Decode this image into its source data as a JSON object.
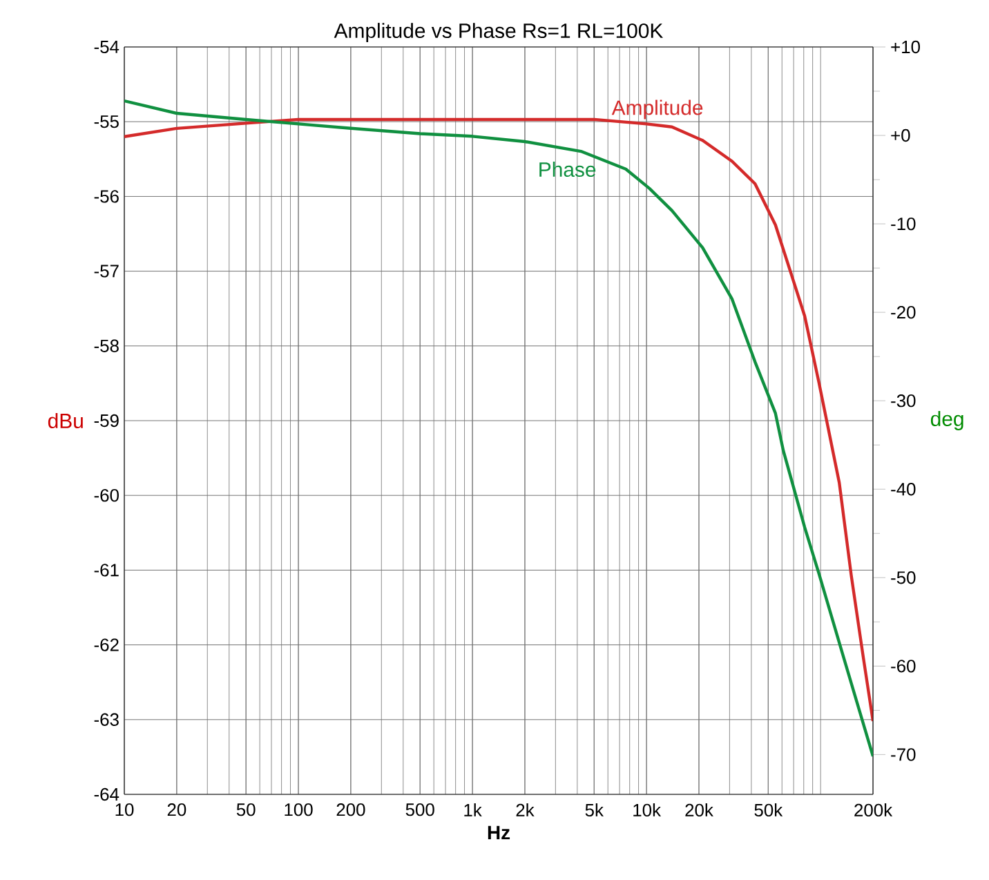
{
  "chart_data": {
    "type": "line",
    "title": "Amplitude vs Phase  Rs=1  RL=100K",
    "xlabel": "Hz",
    "ylabel": "dBu",
    "y2label": "deg",
    "log": "x",
    "grid": true,
    "marker": "none",
    "line_style": "solid",
    "xlim": [
      10,
      200000
    ],
    "xticks": [
      10,
      20,
      50,
      100,
      200,
      500,
      {
        "value": 1000,
        "label": "1k"
      },
      {
        "value": 2000,
        "label": "2k"
      },
      {
        "value": 5000,
        "label": "5k"
      },
      {
        "value": 10000,
        "label": "10k"
      },
      {
        "value": 20000,
        "label": "20k"
      },
      {
        "value": 50000,
        "label": "50k"
      },
      {
        "value": 200000,
        "label": "200k"
      }
    ],
    "ylim": [
      -64,
      -54
    ],
    "yticks": [
      -64,
      -63,
      -62,
      -61,
      -60,
      -59,
      -58,
      -57,
      -56,
      -55,
      -54
    ],
    "y2lim": [
      -74.5,
      10
    ],
    "y2ticks": [
      {
        "value": 10,
        "label": "+10"
      },
      {
        "value": 0,
        "label": "+0"
      },
      -10,
      -20,
      -30,
      -40,
      -50,
      -60,
      -70
    ],
    "series": [
      {
        "name": "Amplitude",
        "color": "#d42a2a",
        "x": [
          10,
          20,
          50,
          100,
          500,
          1000,
          2000,
          5000,
          10000,
          14000,
          21000,
          31000,
          42000,
          55000,
          67000,
          81000,
          98000,
          128000,
          150000,
          176000,
          200000
        ],
        "values": [
          -55.2,
          -55.09,
          -55.02,
          -54.97,
          -54.97,
          -54.97,
          -54.97,
          -54.97,
          -55.03,
          -55.07,
          -55.25,
          -55.53,
          -55.83,
          -56.38,
          -57.0,
          -57.6,
          -58.5,
          -59.83,
          -61.07,
          -62.17,
          -63.02
        ]
      },
      {
        "name": "Phase",
        "color": "#109040",
        "axis": "y2",
        "x": [
          10,
          20,
          50,
          100,
          200,
          500,
          1000,
          2000,
          4200,
          7600,
          10400,
          14000,
          21000,
          31000,
          42000,
          55000,
          61000,
          81000,
          98000,
          135000,
          200000
        ],
        "values": [
          3.9,
          2.5,
          1.8,
          1.3,
          0.8,
          0.2,
          -0.1,
          -0.7,
          -1.8,
          -3.8,
          -6.0,
          -8.5,
          -12.7,
          -18.5,
          -25.6,
          -31.4,
          -35.6,
          -44.3,
          -49.6,
          -58.9,
          -70.2
        ]
      }
    ]
  }
}
